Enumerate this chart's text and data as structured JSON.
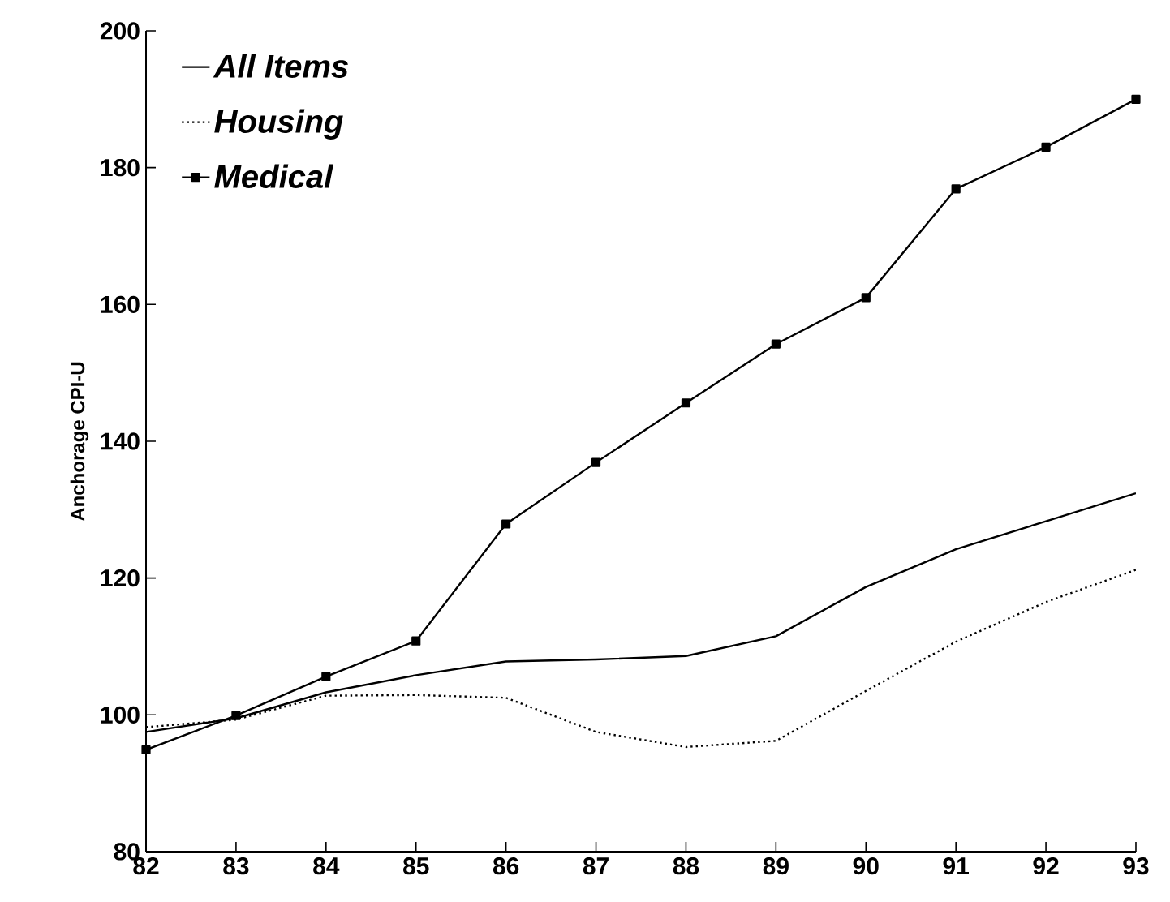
{
  "chart_data": {
    "type": "line",
    "ylabel": "Anchorage CPI-U",
    "categories": [
      "82",
      "83",
      "84",
      "85",
      "86",
      "87",
      "88",
      "89",
      "90",
      "91",
      "92",
      "93"
    ],
    "ylim": [
      80,
      200
    ],
    "yticks": [
      80,
      100,
      120,
      140,
      160,
      180,
      200
    ],
    "legend": "top left",
    "series": [
      {
        "name": "All Items",
        "color": "#000000",
        "line_style": "solid",
        "marker": "none",
        "values": [
          97.5,
          99.5,
          103.3,
          105.8,
          107.8,
          108.1,
          108.6,
          111.5,
          118.7,
          124.2,
          128.3,
          132.4
        ]
      },
      {
        "name": "Housing",
        "color": "#000000",
        "line_style": "dotted",
        "marker": "none",
        "values": [
          98.2,
          99.3,
          102.8,
          102.9,
          102.5,
          97.5,
          95.3,
          96.2,
          103.5,
          110.7,
          116.5,
          121.2
        ]
      },
      {
        "name": "Medical",
        "color": "#000000",
        "line_style": "solid",
        "marker": "square",
        "values": [
          94.9,
          99.9,
          105.6,
          110.8,
          127.9,
          136.9,
          145.6,
          154.2,
          161.0,
          176.9,
          183.0,
          190.0
        ]
      }
    ]
  }
}
